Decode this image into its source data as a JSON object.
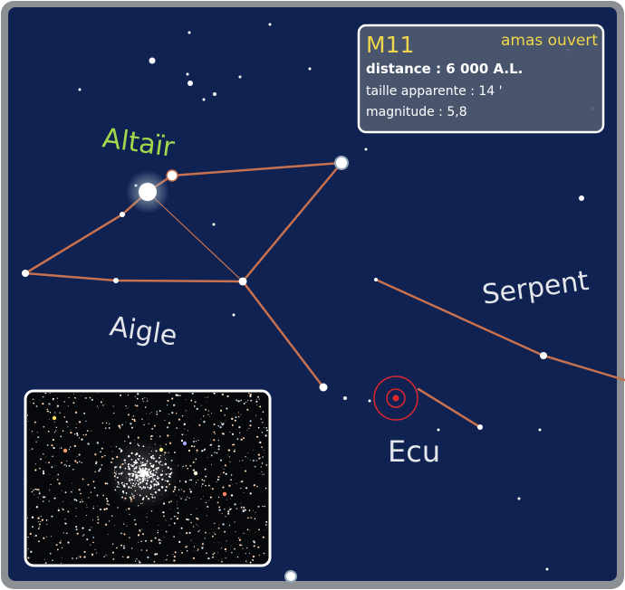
{
  "info": {
    "name": "M11",
    "type": "amas ouvert",
    "distance": "distance : 6 000 A.L.",
    "size": "taille apparente : 14 '",
    "magnitude": "magnitude : 5,8"
  },
  "labels": {
    "star": "Altaïr",
    "aquila": "Aigle",
    "serpens": "Serpent",
    "scutum": "Ecu"
  }
}
